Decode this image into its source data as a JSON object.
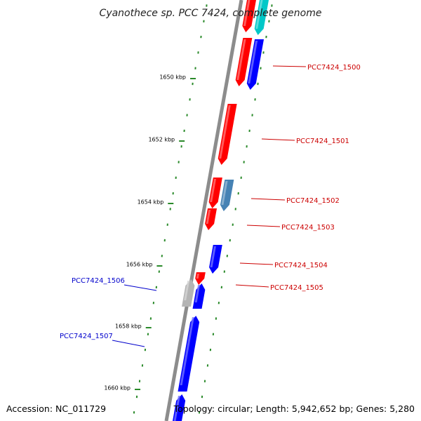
{
  "title": "Cyanothece sp. PCC 7424, complete genome",
  "footer": {
    "accession": "Accession: NC_011729",
    "summary": "Topology: circular; Length: 5,942,652 bp; Genes: 5,280"
  },
  "axis": {
    "ticks": [
      "1650 kbp",
      "1652 kbp",
      "1654 kbp",
      "1656 kbp",
      "1658 kbp",
      "1660 kbp"
    ]
  },
  "genes": [
    {
      "label": "",
      "strand": "reverse",
      "lane": "inner",
      "color": "#ff0000"
    },
    {
      "label": "",
      "strand": "reverse",
      "lane": "outer",
      "color": "#00c8c8"
    },
    {
      "label": "",
      "strand": "reverse",
      "lane": "inner",
      "color": "#ff0000"
    },
    {
      "label": "PCC7424_1500",
      "strand": "reverse",
      "lane": "outer",
      "color": "#0000ff"
    },
    {
      "label": "PCC7424_1501",
      "strand": "reverse",
      "lane": "inner",
      "color": "#ff0000"
    },
    {
      "label": "PCC7424_1502",
      "strand": "reverse",
      "lane": "outer",
      "color": "#4682b4"
    },
    {
      "label": "PCC7424_1503",
      "strand": "reverse",
      "lane": "inner",
      "color": "#ff0000"
    },
    {
      "label": "PCC7424_1504",
      "strand": "reverse",
      "lane": "outer",
      "color": "#0000ff"
    },
    {
      "label": "",
      "strand": "reverse",
      "lane": "inner",
      "color": "#ff0000"
    },
    {
      "label": "PCC7424_1505",
      "strand": "reverse",
      "lane": "inner",
      "color": "#ff0000"
    },
    {
      "label": "PCC7424_1506",
      "strand": "forward",
      "lane": "inner",
      "color": "#b4b4b4"
    },
    {
      "label": "",
      "strand": "forward",
      "lane": "outer",
      "color": "#0000ff"
    },
    {
      "label": "PCC7424_1507",
      "strand": "forward",
      "lane": "outer",
      "color": "#0000ff"
    },
    {
      "label": "",
      "strand": "forward",
      "lane": "outer",
      "color": "#0000ff"
    }
  ],
  "colors": {
    "backbone": "#8c8c8c",
    "tick_marks": "#2a8a2a",
    "reverse_label": "#cc0000",
    "forward_label": "#0000cc"
  }
}
